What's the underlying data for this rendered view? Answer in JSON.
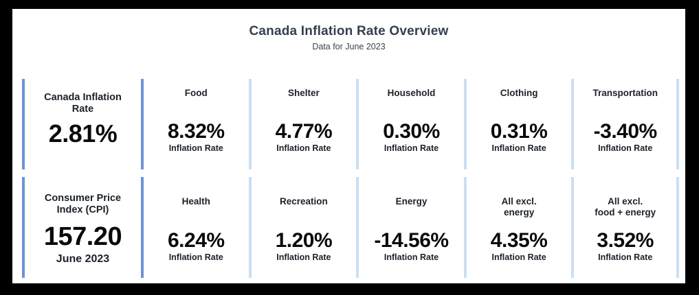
{
  "colors": {
    "accent_dark": "#6b94da",
    "accent_light": "#cbdff2",
    "title_navy": "#333f50",
    "header_ink": "#1b2129",
    "value_ink": "#0a0a0a",
    "subtitle_ink": "#3d4147"
  },
  "header": {
    "title": "Canada Inflation Rate Overview",
    "subtitle": "Data for June 2023"
  },
  "rows": [
    {
      "kpi": {
        "title": "Canada Inflation\nRate",
        "value": "2.81%",
        "caption": ""
      },
      "stats": [
        {
          "title": "Food",
          "value": "8.32%",
          "label": "Inflation Rate"
        },
        {
          "title": "Shelter",
          "value": "4.77%",
          "label": "Inflation Rate"
        },
        {
          "title": "Household",
          "value": "0.30%",
          "label": "Inflation Rate"
        },
        {
          "title": "Clothing",
          "value": "0.31%",
          "label": "Inflation Rate"
        },
        {
          "title": "Transportation",
          "value": "-3.40%",
          "label": "Inflation Rate"
        }
      ]
    },
    {
      "kpi": {
        "title": "Consumer Price\nIndex (CPI)",
        "value": "157.20",
        "caption": "June 2023"
      },
      "stats": [
        {
          "title": "Health",
          "value": "6.24%",
          "label": "Inflation Rate"
        },
        {
          "title": "Recreation",
          "value": "1.20%",
          "label": "Inflation Rate"
        },
        {
          "title": "Energy",
          "value": "-14.56%",
          "label": "Inflation Rate"
        },
        {
          "title": "All excl.\nenergy",
          "value": "4.35%",
          "label": "Inflation Rate"
        },
        {
          "title": "All excl.\nfood + energy",
          "value": "3.52%",
          "label": "Inflation Rate"
        }
      ]
    }
  ],
  "chart_data": {
    "type": "table",
    "title": "Canada Inflation Rate Overview",
    "subtitle": "Data for June 2023",
    "categories": [
      "Canada Inflation Rate",
      "Food",
      "Shelter",
      "Household",
      "Clothing",
      "Transportation",
      "Health",
      "Recreation",
      "Energy",
      "All excl. energy",
      "All excl. food + energy"
    ],
    "values": [
      2.81,
      8.32,
      4.77,
      0.3,
      0.31,
      -3.4,
      6.24,
      1.2,
      -14.56,
      4.35,
      3.52
    ],
    "value_unit": "percent (Inflation Rate)",
    "consumer_price_index": {
      "label": "Consumer Price Index (CPI)",
      "value": 157.2,
      "period": "June 2023"
    }
  }
}
